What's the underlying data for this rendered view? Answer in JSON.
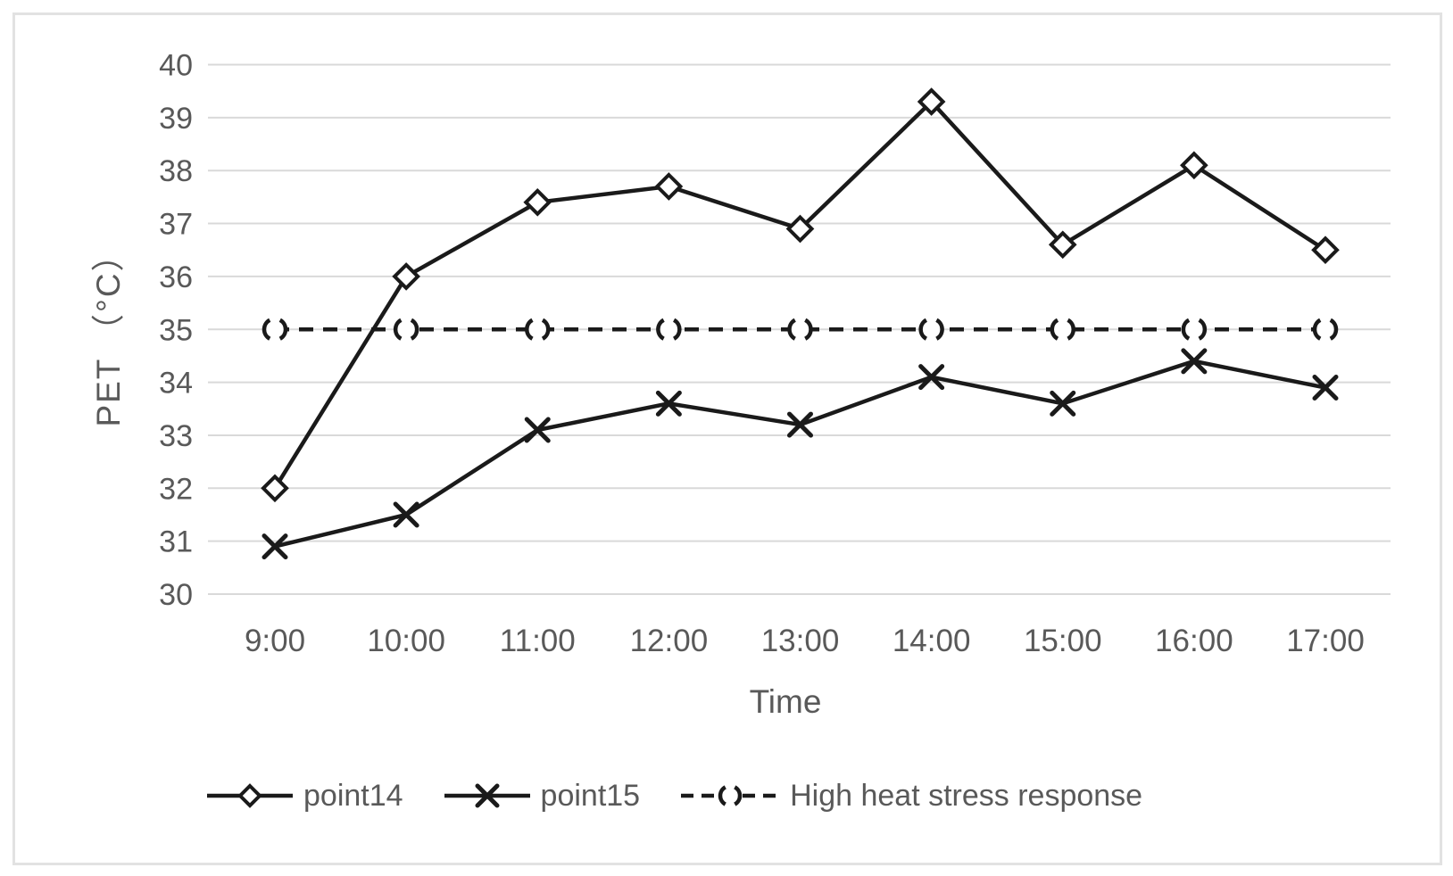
{
  "figure": {
    "background": "#ffffff",
    "border_color": "#e2e2e2"
  },
  "chart_data": {
    "type": "line",
    "title": "",
    "xlabel": "Time",
    "ylabel": "PET （°C）",
    "ylim": [
      30,
      40
    ],
    "ytick_step": 1,
    "grid": "horizontal",
    "legend_position": "bottom",
    "categories": [
      "9:00",
      "10:00",
      "11:00",
      "12:00",
      "13:00",
      "14:00",
      "15:00",
      "16:00",
      "17:00"
    ],
    "series": [
      {
        "name": "point14",
        "marker": "diamond",
        "line": "solid",
        "values": [
          32.0,
          36.0,
          37.4,
          37.7,
          36.9,
          39.3,
          36.6,
          38.1,
          36.5
        ]
      },
      {
        "name": "point15",
        "marker": "x",
        "line": "solid",
        "values": [
          30.9,
          31.5,
          33.1,
          33.6,
          33.2,
          34.1,
          33.6,
          34.4,
          33.9
        ]
      },
      {
        "name": "High heat stress response",
        "marker": "dashed-circle",
        "line": "dashed",
        "values": [
          35,
          35,
          35,
          35,
          35,
          35,
          35,
          35,
          35
        ]
      }
    ],
    "colors": {
      "series_stroke": "#1a1a1a",
      "gridline": "#d9d9d9",
      "tick_label": "#595959",
      "axis_title": "#595959"
    }
  }
}
